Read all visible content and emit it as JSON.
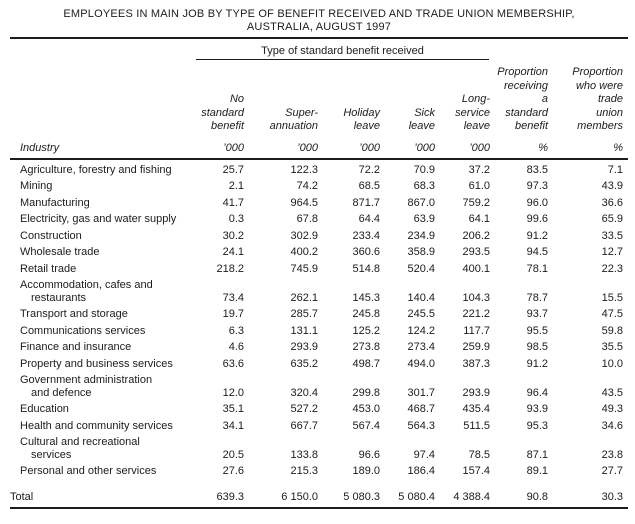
{
  "colors": {
    "text": "#1c1c1c",
    "background": "#ffffff"
  },
  "title": {
    "line1": "EMPLOYEES IN MAIN JOB BY TYPE OF BENEFIT RECEIVED AND TRADE UNION MEMBERSHIP,",
    "line2": "AUSTRALIA, AUGUST 1997"
  },
  "table": {
    "spanner": "Type of standard benefit received",
    "row_header": "Industry",
    "columns": [
      {
        "label": "No standard benefit",
        "lines": [
          "No",
          "standard",
          "benefit"
        ],
        "unit": "’000"
      },
      {
        "label": "Superannuation",
        "lines": [
          "Super-",
          "annuation"
        ],
        "unit": "’000"
      },
      {
        "label": "Holiday leave",
        "lines": [
          "Holiday",
          "leave"
        ],
        "unit": "’000"
      },
      {
        "label": "Sick leave",
        "lines": [
          "Sick",
          "leave"
        ],
        "unit": "’000"
      },
      {
        "label": "Long-service leave",
        "lines": [
          "Long-",
          "service",
          "leave"
        ],
        "unit": "’000"
      },
      {
        "label": "Proportion receiving a standard benefit",
        "lines": [
          "Proportion",
          "receiving",
          "a",
          "standard",
          "benefit"
        ],
        "unit": "%"
      },
      {
        "label": "Proportion who were trade union members",
        "lines": [
          "Proportion",
          "who were",
          "trade",
          "union",
          "members"
        ],
        "unit": "%"
      }
    ],
    "rows": [
      {
        "industry": [
          "Agriculture, forestry and fishing"
        ],
        "values": [
          "25.7",
          "122.3",
          "72.2",
          "70.9",
          "37.2",
          "83.5",
          "7.1"
        ]
      },
      {
        "industry": [
          "Mining"
        ],
        "values": [
          "2.1",
          "74.2",
          "68.5",
          "68.3",
          "61.0",
          "97.3",
          "43.9"
        ]
      },
      {
        "industry": [
          "Manufacturing"
        ],
        "values": [
          "41.7",
          "964.5",
          "871.7",
          "867.0",
          "759.2",
          "96.0",
          "36.6"
        ]
      },
      {
        "industry": [
          "Electricity, gas and water supply"
        ],
        "values": [
          "0.3",
          "67.8",
          "64.4",
          "63.9",
          "64.1",
          "99.6",
          "65.9"
        ]
      },
      {
        "industry": [
          "Construction"
        ],
        "values": [
          "30.2",
          "302.9",
          "233.4",
          "234.9",
          "206.2",
          "91.2",
          "33.5"
        ]
      },
      {
        "industry": [
          "Wholesale trade"
        ],
        "values": [
          "24.1",
          "400.2",
          "360.6",
          "358.9",
          "293.5",
          "94.5",
          "12.7"
        ]
      },
      {
        "industry": [
          "Retail trade"
        ],
        "values": [
          "218.2",
          "745.9",
          "514.8",
          "520.4",
          "400.1",
          "78.1",
          "22.3"
        ]
      },
      {
        "industry": [
          "Accommodation, cafes and",
          "restaurants"
        ],
        "values": [
          "73.4",
          "262.1",
          "145.3",
          "140.4",
          "104.3",
          "78.7",
          "15.5"
        ]
      },
      {
        "industry": [
          "Transport and storage"
        ],
        "values": [
          "19.7",
          "285.7",
          "245.8",
          "245.5",
          "221.2",
          "93.7",
          "47.5"
        ]
      },
      {
        "industry": [
          "Communications services"
        ],
        "values": [
          "6.3",
          "131.1",
          "125.2",
          "124.2",
          "117.7",
          "95.5",
          "59.8"
        ]
      },
      {
        "industry": [
          "Finance and insurance"
        ],
        "values": [
          "4.6",
          "293.9",
          "273.8",
          "273.4",
          "259.9",
          "98.5",
          "35.5"
        ]
      },
      {
        "industry": [
          "Property and business services"
        ],
        "values": [
          "63.6",
          "635.2",
          "498.7",
          "494.0",
          "387.3",
          "91.2",
          "10.0"
        ]
      },
      {
        "industry": [
          "Government administration",
          "and defence"
        ],
        "values": [
          "12.0",
          "320.4",
          "299.8",
          "301.7",
          "293.9",
          "96.4",
          "43.5"
        ]
      },
      {
        "industry": [
          "Education"
        ],
        "values": [
          "35.1",
          "527.2",
          "453.0",
          "468.7",
          "435.4",
          "93.9",
          "49.3"
        ]
      },
      {
        "industry": [
          "Health and community services"
        ],
        "values": [
          "34.1",
          "667.7",
          "567.4",
          "564.3",
          "511.5",
          "95.3",
          "34.6"
        ]
      },
      {
        "industry": [
          "Cultural and recreational",
          "services"
        ],
        "values": [
          "20.5",
          "133.8",
          "96.6",
          "97.4",
          "78.5",
          "87.1",
          "23.8"
        ]
      },
      {
        "industry": [
          "Personal and other services"
        ],
        "values": [
          "27.6",
          "215.3",
          "189.0",
          "186.4",
          "157.4",
          "89.1",
          "27.7"
        ]
      }
    ],
    "total": {
      "label": "Total",
      "values": [
        "639.3",
        "6 150.0",
        "5 080.3",
        "5 080.4",
        "4 388.4",
        "90.8",
        "30.3"
      ]
    }
  }
}
